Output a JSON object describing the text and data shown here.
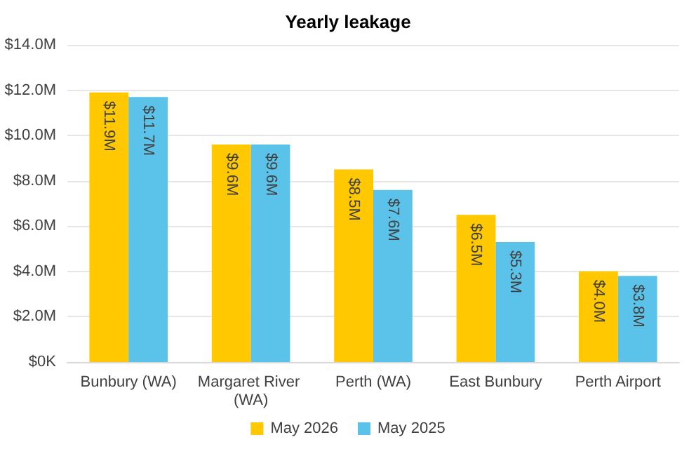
{
  "chart_data": {
    "type": "bar",
    "title": "Yearly leakage",
    "categories": [
      "Bunbury (WA)",
      "Margaret River (WA)",
      "Perth (WA)",
      "East Bunbury",
      "Perth Airport"
    ],
    "series": [
      {
        "name": "May 2026",
        "color": "#ffc800",
        "values": [
          11.9,
          9.6,
          8.5,
          6.5,
          4.0
        ],
        "value_labels": [
          "$11.9M",
          "$9.6M",
          "$8.5M",
          "$6.5M",
          "$4.0M"
        ]
      },
      {
        "name": "May 2025",
        "color": "#5bc3ea",
        "values": [
          11.7,
          9.6,
          7.6,
          5.3,
          3.8
        ],
        "value_labels": [
          "$11.7M",
          "$9.6M",
          "$7.6M",
          "$5.3M",
          "$3.8M"
        ]
      }
    ],
    "ylim": [
      0,
      14
    ],
    "yticks": [
      {
        "value": 0,
        "label": "$0K"
      },
      {
        "value": 2,
        "label": "$2.0M"
      },
      {
        "value": 4,
        "label": "$4.0M"
      },
      {
        "value": 6,
        "label": "$6.0M"
      },
      {
        "value": 8,
        "label": "$8.0M"
      },
      {
        "value": 10,
        "label": "$10.0M"
      },
      {
        "value": 12,
        "label": "$12.0M"
      },
      {
        "value": 14,
        "label": "$14.0M"
      }
    ],
    "grid": "y",
    "legend": "bottom"
  }
}
